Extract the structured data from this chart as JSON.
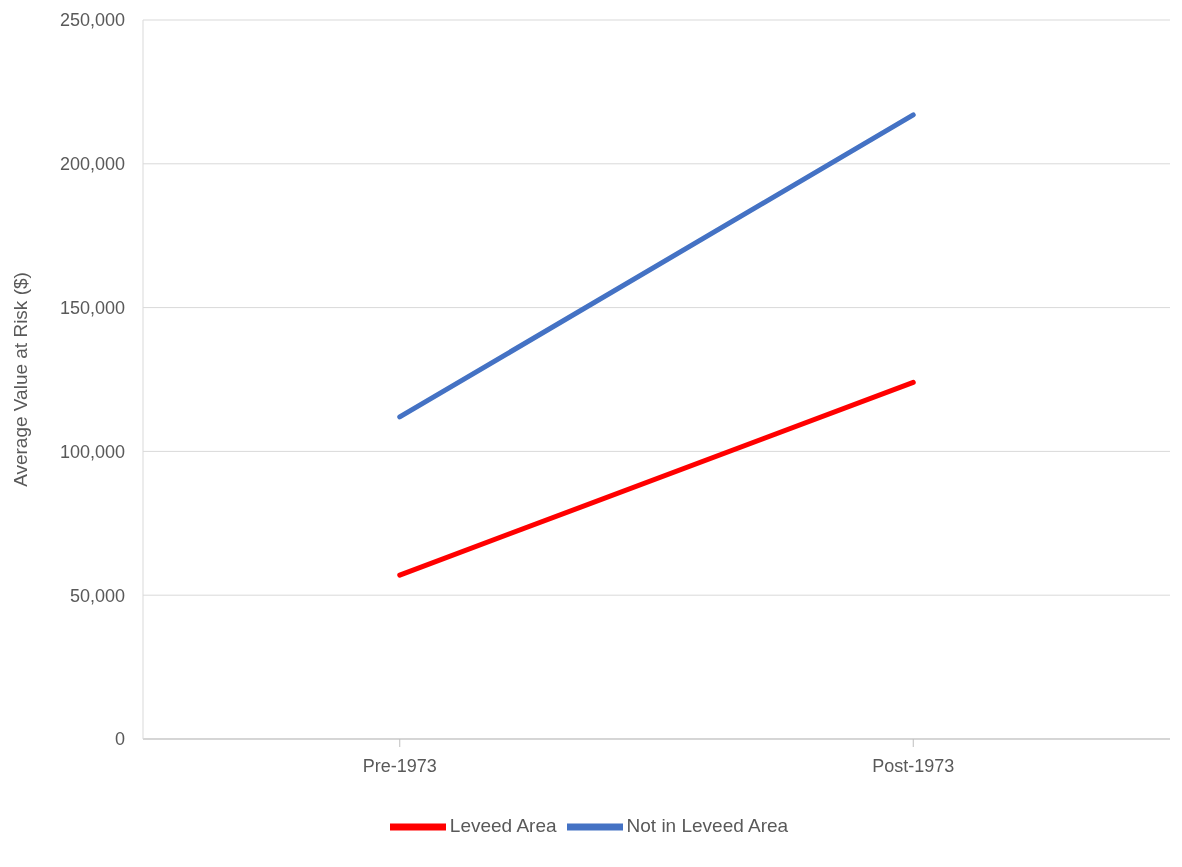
{
  "chart_data": {
    "type": "line",
    "ylabel": "Average Value at Risk ($)",
    "categories": [
      "Pre-1973",
      "Post-1973"
    ],
    "series": [
      {
        "name": "Not in Leveed Area",
        "color": "#4472c4",
        "values": [
          112000,
          217000
        ]
      },
      {
        "name": "Leveed Area",
        "color": "#ff0000",
        "values": [
          57000,
          124000
        ]
      }
    ],
    "ylim": [
      0,
      250000
    ],
    "yticks": [
      {
        "value": 0,
        "label": "0"
      },
      {
        "value": 50000,
        "label": "50,000"
      },
      {
        "value": 100000,
        "label": "100,000"
      },
      {
        "value": 150000,
        "label": "150,000"
      },
      {
        "value": 200000,
        "label": "200,000"
      },
      {
        "value": 250000,
        "label": "250,000"
      }
    ],
    "grid": "y",
    "legend": "bottom",
    "marker": "none",
    "line_style": "solid"
  }
}
